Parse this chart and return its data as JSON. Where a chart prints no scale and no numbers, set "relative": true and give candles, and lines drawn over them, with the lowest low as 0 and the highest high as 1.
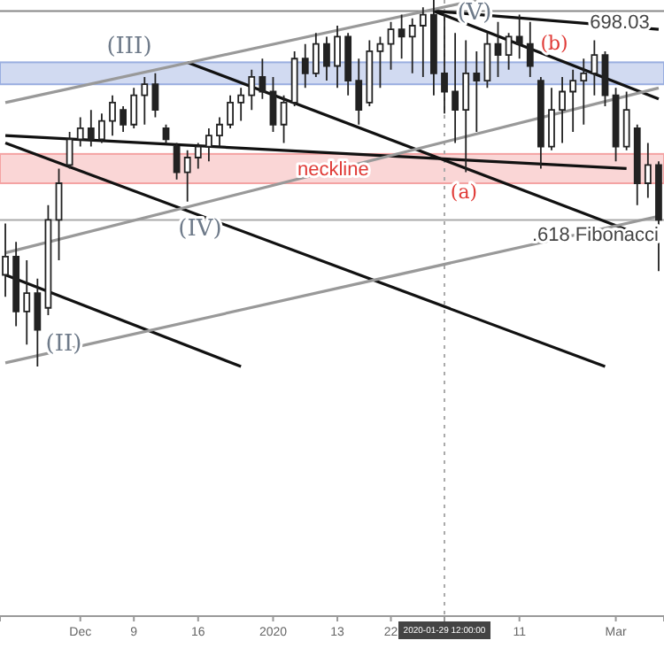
{
  "chart_data": {
    "type": "candlestick",
    "relative": true,
    "color": "#222222",
    "categories": [
      null,
      null,
      null,
      null,
      null,
      null,
      null,
      "Dec",
      null,
      null,
      null,
      null,
      "9",
      null,
      null,
      null,
      null,
      null,
      "16",
      null,
      null,
      null,
      null,
      null,
      null,
      "2020",
      null,
      null,
      null,
      null,
      null,
      "13",
      null,
      null,
      null,
      null,
      "22",
      null,
      null,
      null,
      null,
      "2020-01-29 12:00:00",
      null,
      null,
      null,
      null,
      null,
      null,
      "11",
      null,
      null,
      null,
      null,
      null,
      null,
      null,
      null,
      "Mar",
      null,
      null,
      null,
      null
    ],
    "ohlc": [
      [
        0.25,
        0.39,
        0.19,
        0.3
      ],
      [
        0.3,
        0.34,
        0.11,
        0.15
      ],
      [
        0.15,
        0.29,
        0.06,
        0.2
      ],
      [
        0.2,
        0.24,
        0,
        0.1
      ],
      [
        0.16,
        0.44,
        0.14,
        0.4
      ],
      [
        0.4,
        0.54,
        0.29,
        0.5
      ],
      [
        0.55,
        0.64,
        0.54,
        0.62
      ],
      [
        0.62,
        0.68,
        0.6,
        0.65
      ],
      [
        0.65,
        0.7,
        0.6,
        0.62
      ],
      [
        0.62,
        0.69,
        0.61,
        0.67
      ],
      [
        0.67,
        0.74,
        0.63,
        0.72
      ],
      [
        0.7,
        0.71,
        0.64,
        0.66
      ],
      [
        0.66,
        0.76,
        0.65,
        0.74
      ],
      [
        0.74,
        0.79,
        0.66,
        0.77
      ],
      [
        0.77,
        0.8,
        0.68,
        0.7
      ],
      [
        0.65,
        0.66,
        0.61,
        0.62
      ],
      [
        0.6,
        0.61,
        0.51,
        0.53
      ],
      [
        0.53,
        0.59,
        0.45,
        0.57
      ],
      [
        0.57,
        0.61,
        0.54,
        0.6
      ],
      [
        0.6,
        0.65,
        0.56,
        0.63
      ],
      [
        0.63,
        0.68,
        0.6,
        0.66
      ],
      [
        0.66,
        0.74,
        0.65,
        0.72
      ],
      [
        0.72,
        0.76,
        0.67,
        0.74
      ],
      [
        0.74,
        0.81,
        0.7,
        0.79
      ],
      [
        0.79,
        0.84,
        0.73,
        0.75
      ],
      [
        0.75,
        0.79,
        0.64,
        0.66
      ],
      [
        0.66,
        0.74,
        0.61,
        0.72
      ],
      [
        0.72,
        0.86,
        0.71,
        0.84
      ],
      [
        0.84,
        0.88,
        0.76,
        0.8
      ],
      [
        0.8,
        0.91,
        0.79,
        0.88
      ],
      [
        0.88,
        0.9,
        0.78,
        0.82
      ],
      [
        0.82,
        0.93,
        0.76,
        0.9
      ],
      [
        0.9,
        0.91,
        0.74,
        0.78
      ],
      [
        0.78,
        0.84,
        0.66,
        0.7
      ],
      [
        0.72,
        0.89,
        0.71,
        0.86
      ],
      [
        0.86,
        0.9,
        0.76,
        0.88
      ],
      [
        0.88,
        0.94,
        0.81,
        0.92
      ],
      [
        0.92,
        0.96,
        0.84,
        0.9
      ],
      [
        0.9,
        0.95,
        0.8,
        0.93
      ],
      [
        0.93,
        0.98,
        0.79,
        0.96
      ],
      [
        0.96,
        1,
        0.74,
        0.8
      ],
      [
        0.8,
        0.96,
        0.69,
        0.75
      ],
      [
        0.75,
        0.91,
        0.61,
        0.7
      ],
      [
        0.7,
        0.89,
        0.53,
        0.8
      ],
      [
        0.8,
        0.86,
        0.64,
        0.78
      ],
      [
        0.78,
        0.91,
        0.76,
        0.88
      ],
      [
        0.88,
        0.94,
        0.79,
        0.85
      ],
      [
        0.85,
        0.91,
        0.81,
        0.9
      ],
      [
        0.9,
        0.96,
        0.84,
        0.88
      ],
      [
        0.88,
        0.94,
        0.79,
        0.82
      ],
      [
        0.78,
        0.79,
        0.54,
        0.6
      ],
      [
        0.6,
        0.76,
        0.59,
        0.7
      ],
      [
        0.7,
        0.79,
        0.61,
        0.75
      ],
      [
        0.75,
        0.81,
        0.64,
        0.78
      ],
      [
        0.78,
        0.84,
        0.66,
        0.8
      ],
      [
        0.8,
        0.89,
        0.74,
        0.85
      ],
      [
        0.85,
        0.86,
        0.71,
        0.74
      ],
      [
        0.74,
        0.76,
        0.56,
        0.6
      ],
      [
        0.6,
        0.75,
        0.59,
        0.7
      ],
      [
        0.65,
        0.66,
        0.44,
        0.5
      ],
      [
        0.5,
        0.61,
        0.46,
        0.55
      ],
      [
        0.55,
        0.56,
        0.26,
        0.4
      ]
    ],
    "series": [
      {
        "type": "line",
        "color": "#111111",
        "values": [
          0.63,
          null,
          null,
          null,
          null,
          null,
          null,
          null,
          null,
          null,
          null,
          null,
          null,
          null,
          null,
          null,
          null,
          null,
          null,
          null,
          null,
          null,
          null,
          null,
          null,
          null,
          null,
          null,
          null,
          null,
          null,
          null,
          null,
          null,
          null,
          null,
          null,
          null,
          null,
          null,
          null,
          null,
          null,
          null,
          null,
          null,
          null,
          null,
          null,
          null,
          null,
          null,
          null,
          null,
          null,
          null,
          null,
          null,
          0.54,
          null,
          null,
          null
        ]
      },
      {
        "type": "line",
        "color": "#111111",
        "values": [
          0.61,
          null,
          null,
          null,
          null,
          null,
          null,
          null,
          null,
          null,
          null,
          null,
          null,
          null,
          null,
          null,
          null,
          null,
          null,
          null,
          null,
          null,
          null,
          null,
          null,
          null,
          null,
          null,
          null,
          null,
          null,
          null,
          null,
          null,
          null,
          null,
          null,
          null,
          null,
          null,
          null,
          null,
          null,
          null,
          null,
          null,
          null,
          null,
          null,
          null,
          null,
          null,
          null,
          null,
          null,
          null,
          0,
          null,
          null,
          null,
          null,
          null
        ]
      },
      {
        "type": "line",
        "color": "#111111",
        "values": [
          0.25,
          null,
          null,
          null,
          null,
          null,
          null,
          null,
          null,
          null,
          null,
          null,
          null,
          null,
          null,
          null,
          null,
          null,
          null,
          null,
          null,
          null,
          0,
          null,
          null,
          null,
          null,
          null,
          null,
          null,
          null,
          null,
          null,
          null,
          null,
          null,
          null,
          null,
          null,
          null,
          null,
          null,
          null,
          null,
          null,
          null,
          null,
          null,
          null,
          null,
          null,
          null,
          null,
          null,
          null,
          null,
          null,
          null,
          null,
          null,
          null,
          null
        ]
      },
      {
        "type": "line",
        "color": "#111111",
        "values": [
          null,
          null,
          null,
          null,
          null,
          null,
          null,
          null,
          null,
          null,
          null,
          null,
          null,
          null,
          null,
          null,
          null,
          0.83,
          null,
          null,
          null,
          null,
          null,
          null,
          null,
          null,
          null,
          null,
          null,
          null,
          null,
          null,
          null,
          null,
          null,
          null,
          null,
          null,
          null,
          null,
          null,
          null,
          null,
          null,
          null,
          null,
          null,
          null,
          null,
          null,
          null,
          null,
          null,
          null,
          null,
          null,
          null,
          null,
          null,
          null,
          null,
          0.34
        ]
      },
      {
        "type": "line",
        "color": "#111111",
        "values": [
          null,
          null,
          null,
          null,
          null,
          null,
          null,
          null,
          null,
          null,
          null,
          null,
          null,
          null,
          null,
          null,
          null,
          null,
          null,
          null,
          null,
          null,
          null,
          null,
          null,
          null,
          null,
          null,
          null,
          null,
          null,
          null,
          null,
          null,
          null,
          null,
          null,
          null,
          null,
          null,
          0.97,
          null,
          null,
          null,
          null,
          null,
          null,
          null,
          null,
          null,
          null,
          null,
          null,
          null,
          null,
          null,
          null,
          null,
          null,
          null,
          null,
          0.73
        ]
      },
      {
        "type": "line",
        "color": "#111111",
        "values": [
          null,
          null,
          null,
          null,
          null,
          null,
          null,
          null,
          null,
          null,
          null,
          null,
          null,
          null,
          null,
          null,
          null,
          null,
          null,
          null,
          null,
          null,
          null,
          null,
          null,
          null,
          null,
          null,
          null,
          null,
          null,
          null,
          null,
          null,
          null,
          null,
          null,
          null,
          null,
          null,
          0.97,
          null,
          null,
          null,
          null,
          null,
          null,
          null,
          null,
          null,
          null,
          null,
          null,
          null,
          null,
          null,
          null,
          null,
          null,
          null,
          null,
          0.92
        ]
      },
      {
        "type": "line",
        "color": "#999999",
        "values": [
          0.01,
          null,
          null,
          null,
          null,
          null,
          null,
          null,
          null,
          null,
          null,
          null,
          null,
          null,
          null,
          null,
          null,
          null,
          null,
          null,
          null,
          null,
          null,
          null,
          null,
          null,
          null,
          null,
          null,
          null,
          null,
          null,
          null,
          null,
          null,
          null,
          null,
          null,
          null,
          null,
          null,
          null,
          null,
          null,
          null,
          null,
          null,
          null,
          null,
          null,
          null,
          null,
          null,
          null,
          null,
          null,
          null,
          null,
          null,
          null,
          null,
          0.41
        ]
      },
      {
        "type": "line",
        "color": "#999999",
        "values": [
          0.31,
          null,
          null,
          null,
          null,
          null,
          null,
          null,
          null,
          null,
          null,
          null,
          null,
          null,
          null,
          null,
          null,
          null,
          null,
          null,
          null,
          null,
          null,
          null,
          null,
          null,
          null,
          null,
          null,
          null,
          null,
          null,
          null,
          null,
          null,
          null,
          null,
          null,
          null,
          null,
          null,
          null,
          null,
          null,
          null,
          null,
          null,
          null,
          null,
          null,
          null,
          null,
          null,
          null,
          null,
          null,
          null,
          null,
          null,
          null,
          null,
          0.76
        ]
      },
      {
        "type": "line",
        "color": "#999999",
        "values": [
          0.72,
          null,
          null,
          null,
          null,
          null,
          null,
          null,
          null,
          null,
          null,
          null,
          null,
          null,
          null,
          null,
          null,
          null,
          null,
          null,
          null,
          null,
          null,
          null,
          null,
          null,
          null,
          null,
          null,
          null,
          null,
          null,
          null,
          null,
          null,
          null,
          null,
          null,
          null,
          null,
          null,
          null,
          null,
          null,
          1,
          null,
          null,
          null,
          null,
          null,
          null,
          null,
          null,
          null,
          null,
          null,
          null,
          null,
          null,
          null,
          null,
          null
        ]
      }
    ],
    "bands": [
      {
        "axis": "y",
        "from": 0.77,
        "to": 0.83,
        "color": "#9aaee0"
      },
      {
        "axis": "y",
        "from": 0.5,
        "to": 0.58,
        "color": "#f4a3a3",
        "label": "neckline"
      }
    ],
    "ref_lines": [
      {
        "axis": "y",
        "value": 0.97,
        "color": "#888888"
      },
      {
        "axis": "y",
        "value": 0.4,
        "label": ".618 Fibonacci",
        "color": "#aaaaaa"
      },
      {
        "axis": "x",
        "value": "2020-01-29 12:00:00",
        "color": "#aaaaaa",
        "line_style": "dotted"
      }
    ],
    "annotations": [
      "(II)",
      "(III)",
      "(IV)",
      "(V)",
      "(a)",
      "(b)",
      "698.03"
    ]
  }
}
